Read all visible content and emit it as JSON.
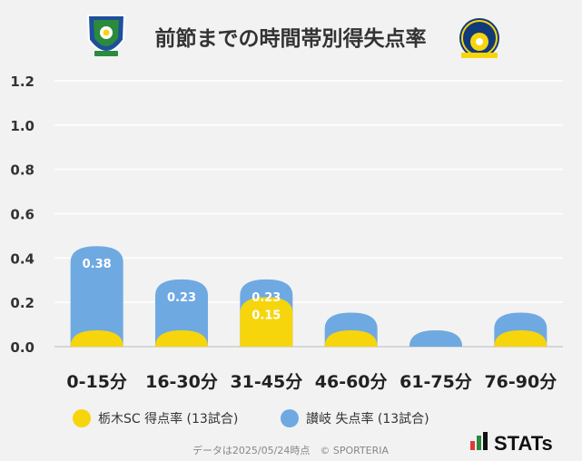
{
  "title": "前節までの時間帯別得失点率",
  "footer": "データは2025/05/24時点　© SPORTERIA",
  "brand": "STATs",
  "colors": {
    "background": "#f2f2f2",
    "tochigi": "#f6d50d",
    "sanuki": "#6fa9e2",
    "grid": "#ffffff",
    "baseline": "#cccccc"
  },
  "logos": {
    "left": "tochigi-sc-emblem",
    "right": "kamatamare-sanuki-emblem"
  },
  "chart_data": {
    "type": "bar",
    "categories": [
      "0-15分",
      "16-30分",
      "31-45分",
      "46-60分",
      "61-75分",
      "76-90分"
    ],
    "ylim": [
      0,
      1.2
    ],
    "yticks": [
      "0.0",
      "0.2",
      "0.4",
      "0.6",
      "0.8",
      "1.0",
      "1.2"
    ],
    "grid": true,
    "legend_position": "bottom",
    "series": [
      {
        "name": "栃木SC 得点率 (13試合)",
        "values": [
          0.0,
          0.0,
          0.15,
          0.0,
          0.0,
          0.0
        ],
        "labels": [
          "",
          "",
          "0.15",
          "",
          "",
          ""
        ]
      },
      {
        "name": "讃岐 失点率 (13試合)",
        "values": [
          0.38,
          0.23,
          0.23,
          0.08,
          0.0,
          0.08
        ],
        "labels": [
          "0.38",
          "0.23",
          "0.23",
          "",
          "",
          ""
        ]
      }
    ]
  }
}
